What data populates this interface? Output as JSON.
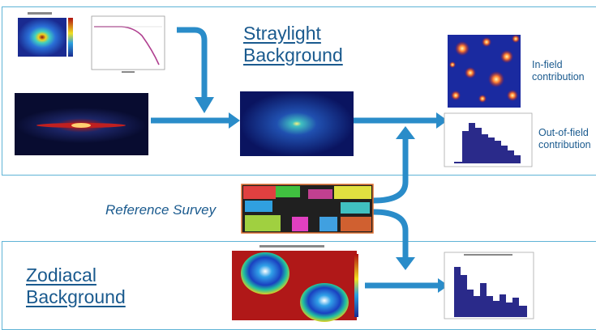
{
  "straylight": {
    "title_line1": "Straylight",
    "title_line2": "Background"
  },
  "zodiacal": {
    "title_line1": "Zodiacal",
    "title_line2": "Background"
  },
  "reference_survey": "Reference Survey",
  "outputs": {
    "infield_line1": "In-field",
    "infield_line2": "contribution",
    "outfield_line1": "Out-of-field",
    "outfield_line2": "contribution"
  },
  "colors": {
    "accent": "#2a8cc9",
    "panel_border": "#5fb4d6",
    "text": "#1a5a8e"
  }
}
